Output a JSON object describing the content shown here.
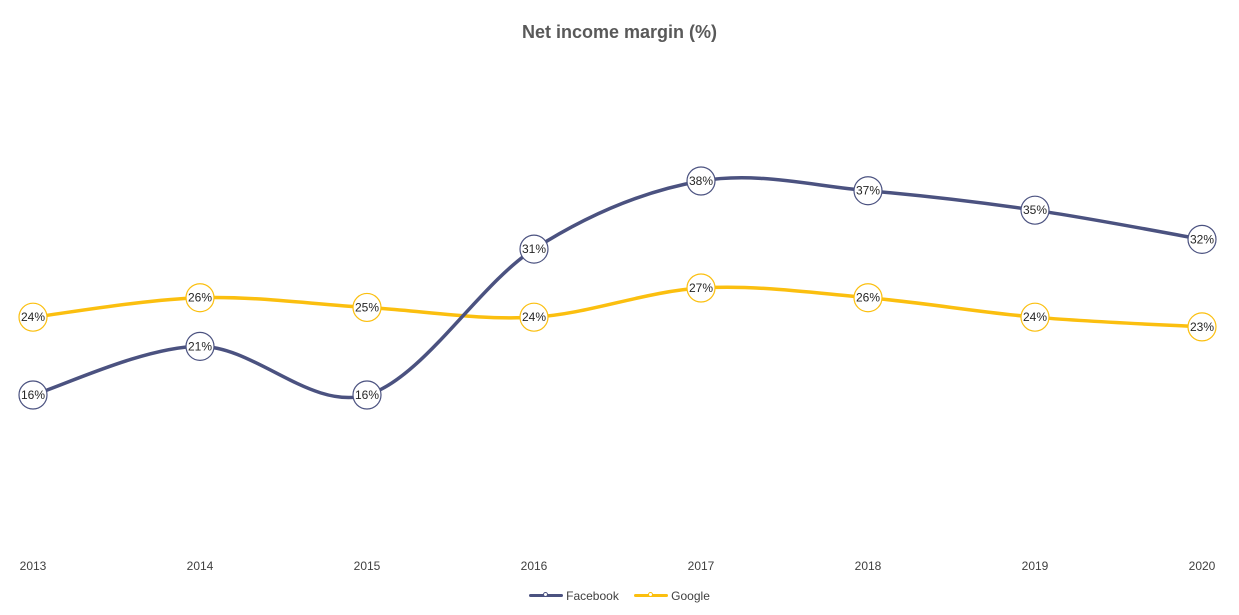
{
  "chart_data": {
    "type": "line",
    "title": "Net income margin (%)",
    "x": [
      "2013",
      "2014",
      "2015",
      "2016",
      "2017",
      "2018",
      "2019",
      "2020"
    ],
    "series": [
      {
        "name": "Facebook",
        "color": "#4b5280",
        "values": [
          16,
          21,
          16,
          31,
          38,
          37,
          35,
          32
        ],
        "labels": [
          "16%",
          "21%",
          "16%",
          "31%",
          "38%",
          "37%",
          "35%",
          "32%"
        ]
      },
      {
        "name": "Google",
        "color": "#fbbf0f",
        "values": [
          24,
          26,
          25,
          24,
          27,
          26,
          24,
          23
        ],
        "labels": [
          "24%",
          "26%",
          "25%",
          "24%",
          "27%",
          "26%",
          "24%",
          "23%"
        ]
      }
    ],
    "smooth": true,
    "grid": false,
    "legend_position": "bottom"
  }
}
